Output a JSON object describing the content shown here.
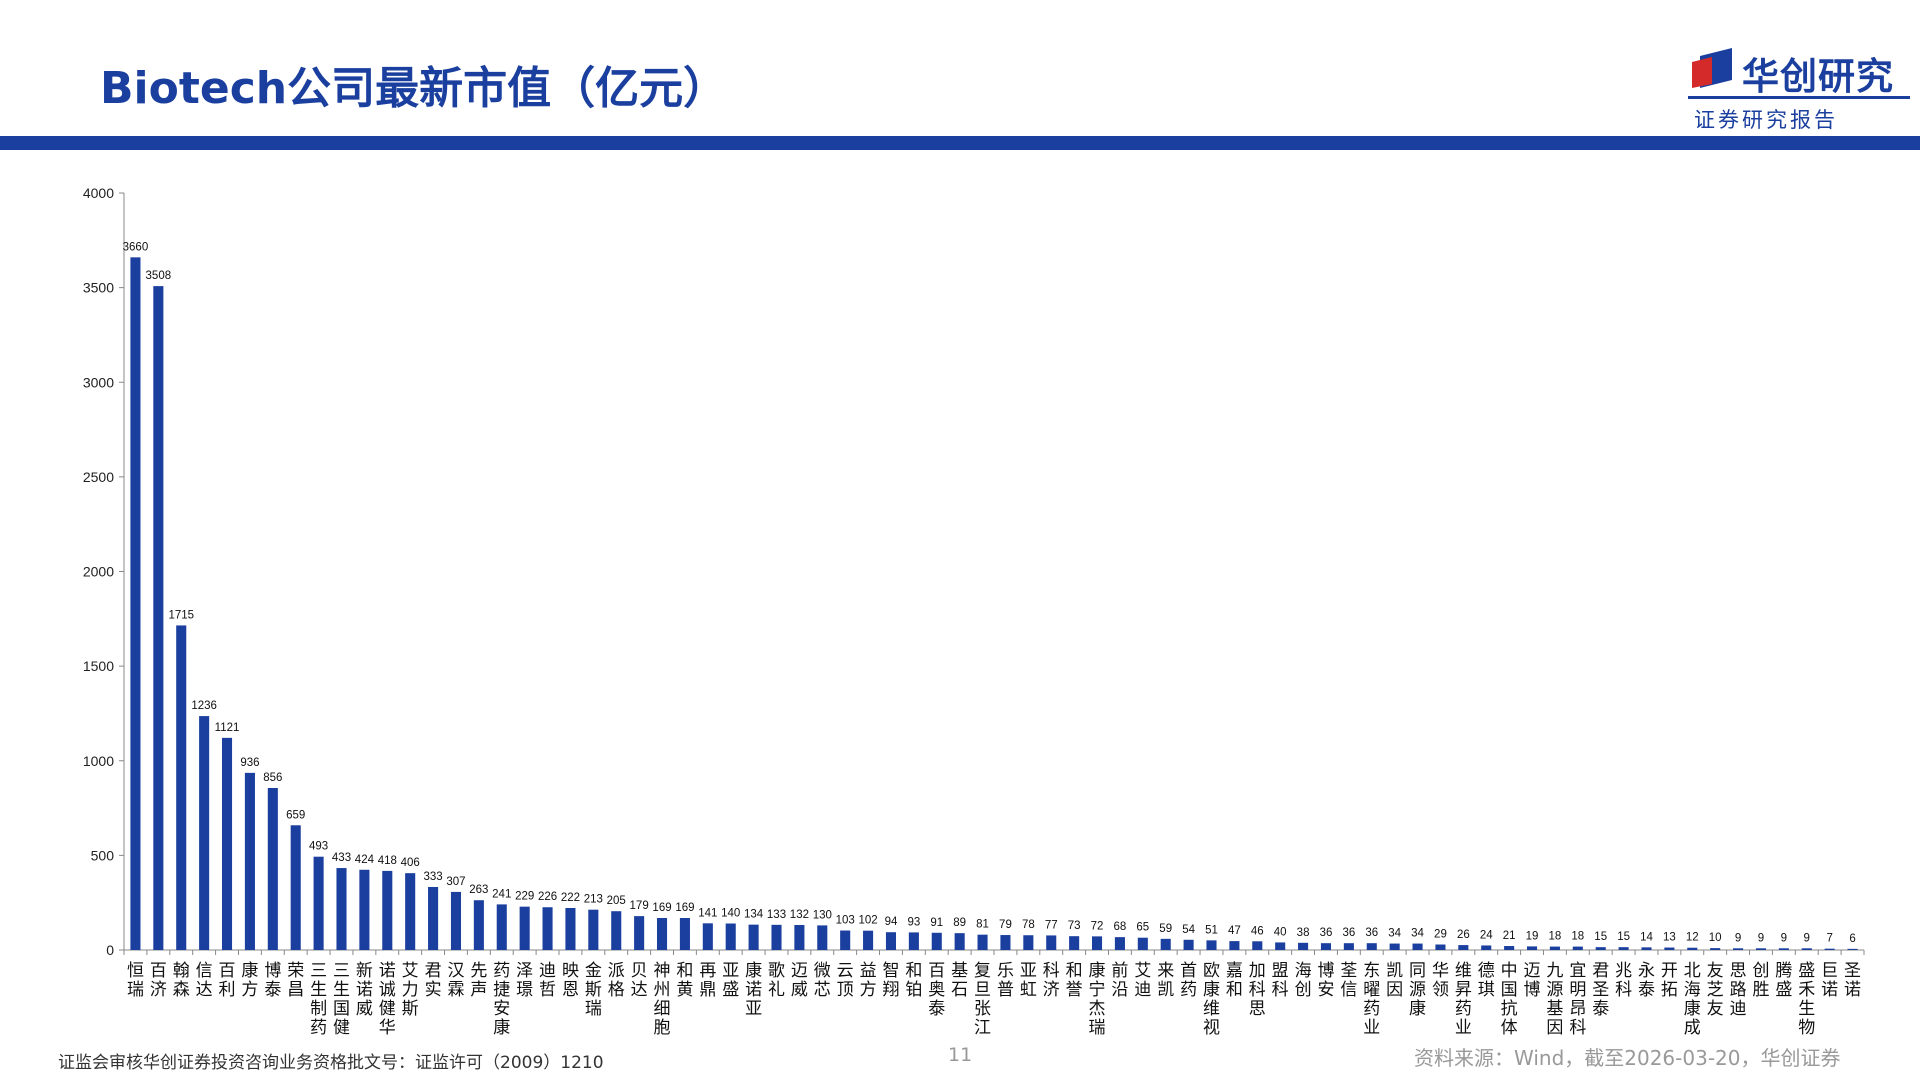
{
  "header": {
    "title": "Biotech公司最新市值（亿元）",
    "logo_name": "华创研究",
    "logo_sub": "证券研究报告",
    "brand_color": "#1a3f9e"
  },
  "footer": {
    "license": "证监会审核华创证券投资咨询业务资格批文号：证监许可（2009）1210",
    "page": "11",
    "source": "资料来源：Wind，截至2026-03-20，华创证券"
  },
  "chart_data": {
    "type": "bar",
    "categories": [
      "恒瑞",
      "百济",
      "翰森",
      "信达",
      "百利",
      "康方",
      "博泰",
      "荣昌",
      "三生制药",
      "三生国健",
      "新诺威",
      "诺诚健华",
      "艾力斯",
      "君实",
      "汉霖",
      "先声",
      "药捷安康",
      "泽璟",
      "迪哲",
      "映恩",
      "金斯瑞",
      "派格",
      "贝达",
      "神州细胞",
      "和黄",
      "再鼎",
      "亚盛",
      "康诺亚",
      "歌礼",
      "迈威",
      "微芯",
      "云顶",
      "益方",
      "智翔",
      "和铂",
      "百奥泰",
      "基石",
      "复旦张江",
      "乐普",
      "亚虹",
      "科济",
      "和誉",
      "康宁杰瑞",
      "前沿",
      "艾迪",
      "来凯",
      "首药",
      "欧康维视",
      "嘉和",
      "加科思",
      "盟科",
      "海创",
      "博安",
      "荃信",
      "东曜药业",
      "凯因",
      "同源康",
      "华领",
      "维昇药业",
      "德琪",
      "中国抗体",
      "迈博",
      "九源基因",
      "宜明昂科",
      "君圣泰",
      "兆科",
      "永泰",
      "开拓",
      "北海康成",
      "友芝友",
      "思路迪",
      "创胜",
      "腾盛",
      "盛禾生物",
      "巨诺",
      "圣诺"
    ],
    "values": [
      3660,
      3508,
      1715,
      1236,
      1121,
      936,
      856,
      659,
      493,
      433,
      424,
      418,
      406,
      333,
      307,
      263,
      241,
      229,
      226,
      222,
      213,
      205,
      179,
      169,
      169,
      141,
      140,
      134,
      133,
      132,
      130,
      103,
      102,
      94,
      93,
      91,
      89,
      81,
      79,
      78,
      77,
      73,
      72,
      68,
      65,
      59,
      54,
      51,
      47,
      46,
      40,
      38,
      36,
      36,
      36,
      34,
      34,
      29,
      26,
      24,
      21,
      19,
      18,
      18,
      15,
      15,
      14,
      13,
      12,
      10,
      9,
      9,
      9,
      9,
      7,
      6
    ],
    "yticks": [
      0,
      500,
      1000,
      1500,
      2000,
      2500,
      3000,
      3500,
      4000
    ],
    "ylim": [
      0,
      4000
    ],
    "bar_color": "#1a3f9e",
    "grid": false,
    "legend": "none"
  }
}
